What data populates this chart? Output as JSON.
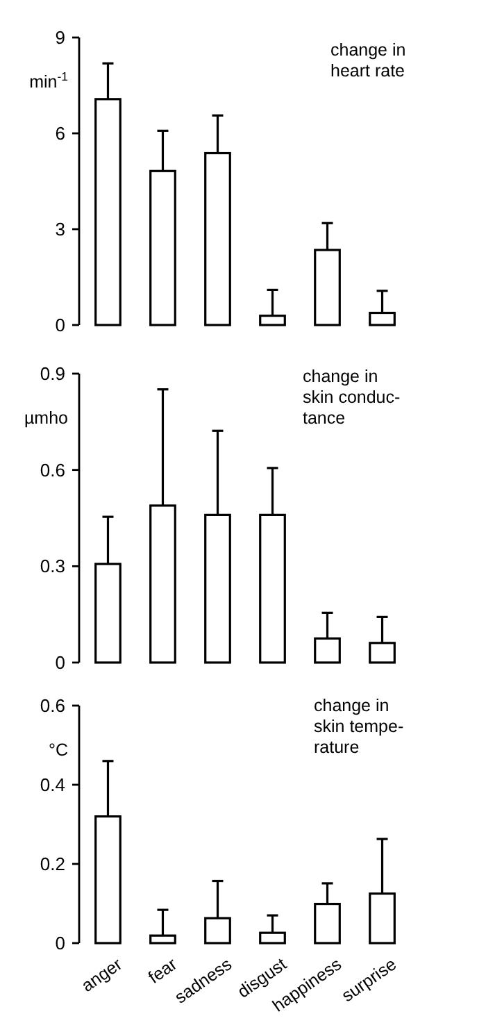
{
  "chart_data": [
    {
      "type": "bar",
      "title": "change in\nheart rate",
      "ylabel": "min$^{-1}$",
      "categories": [
        null,
        null,
        null,
        null,
        null,
        null
      ],
      "values": [
        7.07,
        4.82,
        5.38,
        0.29,
        2.35,
        0.38
      ],
      "errors": [
        [
          7.07,
          8.19
        ],
        [
          4.82,
          6.08
        ],
        [
          5.38,
          6.56
        ],
        [
          0.29,
          1.1
        ],
        [
          2.35,
          3.19
        ],
        [
          0.38,
          1.07
        ]
      ],
      "color": "#ffffff",
      "ylim": [
        0,
        9
      ],
      "yticks": [
        0,
        3,
        6,
        9
      ],
      "grid": false
    },
    {
      "type": "bar",
      "title": "change in\nskin conduc-\ntance",
      "ylabel": "µmho",
      "categories": [
        null,
        null,
        null,
        null,
        null,
        null
      ],
      "values": [
        0.307,
        0.489,
        0.46,
        0.46,
        0.075,
        0.061
      ],
      "errors": [
        [
          0.307,
          0.454
        ],
        [
          0.489,
          0.851
        ],
        [
          0.46,
          0.722
        ],
        [
          0.46,
          0.606
        ],
        [
          0.075,
          0.155
        ],
        [
          0.061,
          0.142
        ]
      ],
      "color": "#ffffff",
      "ylim": [
        0,
        0.9
      ],
      "yticks": [
        0,
        0.3,
        0.6,
        0.9
      ],
      "grid": false
    },
    {
      "type": "bar",
      "title": "change in\nskin tempe-\nrature",
      "ylabel": "°C",
      "categories": [
        "anger",
        "fear",
        "sadness",
        "disgust",
        "happiness",
        "surprise"
      ],
      "values": [
        0.32,
        0.019,
        0.063,
        0.026,
        0.099,
        0.125
      ],
      "errors": [
        [
          0.32,
          0.46
        ],
        [
          0.019,
          0.084
        ],
        [
          0.063,
          0.157
        ],
        [
          0.026,
          0.07
        ],
        [
          0.099,
          0.151
        ],
        [
          0.125,
          0.263
        ]
      ],
      "color": "#ffffff",
      "ylim": [
        0,
        0.6
      ],
      "yticks": [
        0,
        0.2,
        0.4,
        0.6
      ],
      "grid": false
    }
  ]
}
